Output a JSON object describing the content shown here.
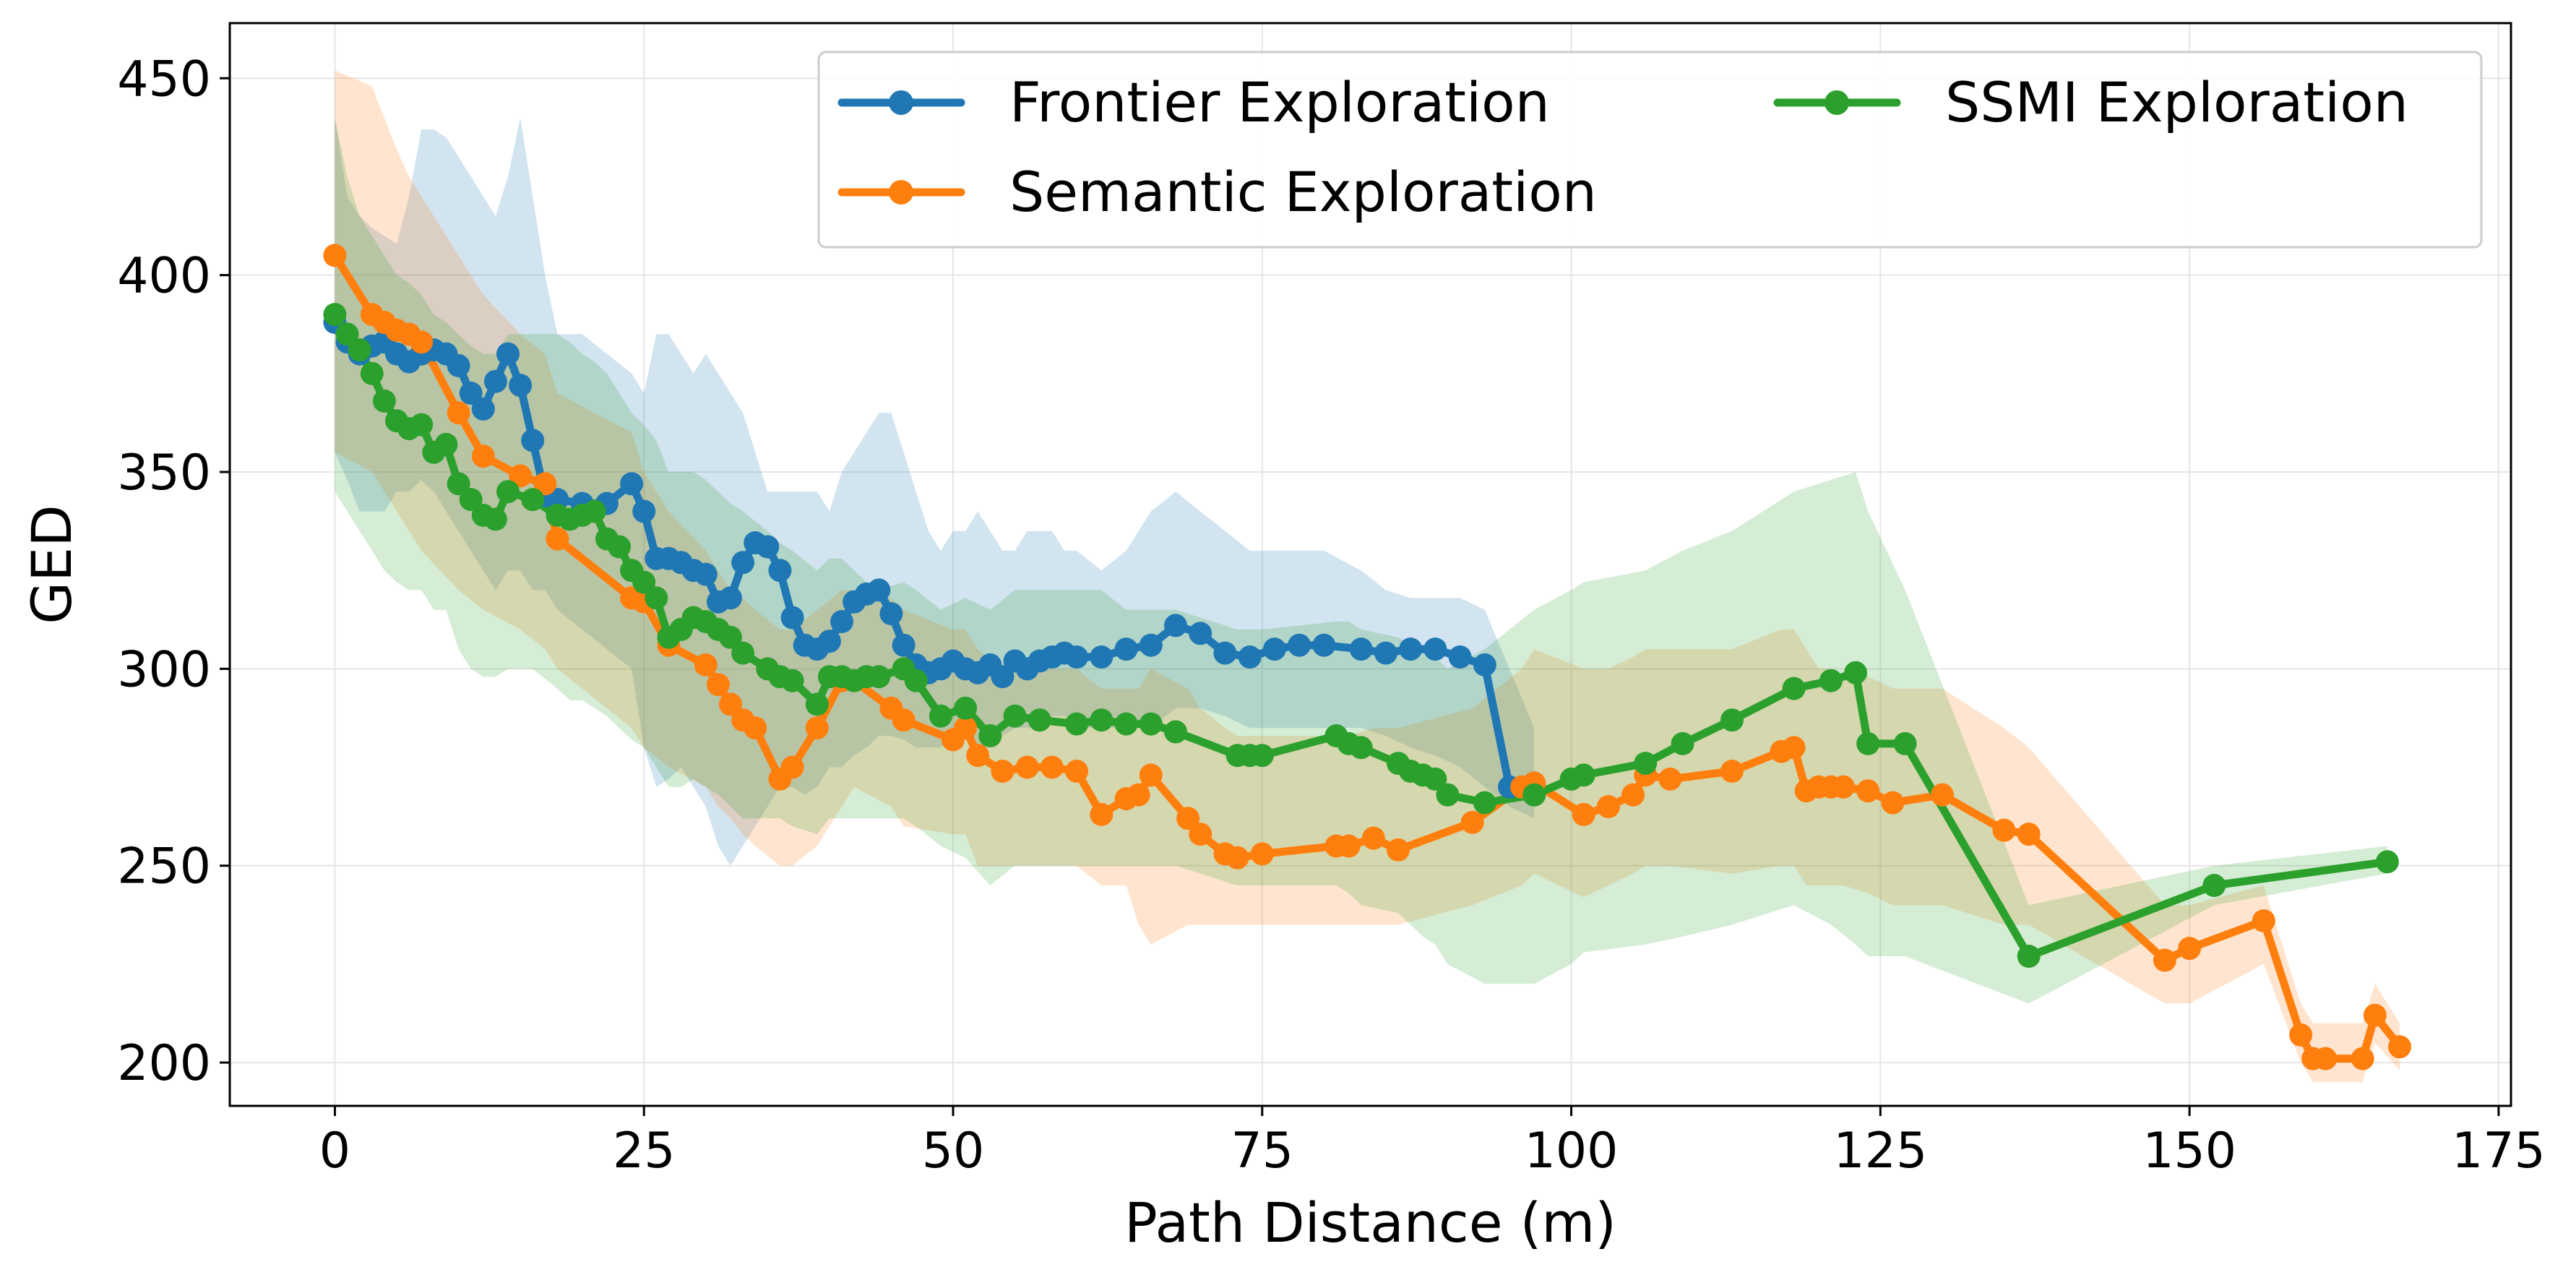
{
  "chart_data": {
    "type": "line",
    "title": "",
    "xlabel": "Path Distance (m)",
    "ylabel": "GED",
    "xlim": [
      -8.5,
      176
    ],
    "ylim": [
      189,
      464
    ],
    "xticks": [
      0,
      25,
      50,
      75,
      100,
      125,
      150,
      175
    ],
    "yticks": [
      200,
      250,
      300,
      350,
      400,
      450
    ],
    "grid": true,
    "legend": {
      "position": "top-right",
      "columns": 2
    },
    "series": [
      {
        "name": "Frontier Exploration",
        "color": "#1f77b4",
        "x": [
          0,
          1,
          2,
          3,
          4,
          5,
          6,
          7,
          8,
          9,
          10,
          11,
          12,
          13,
          14,
          15,
          16,
          17,
          18,
          20,
          22,
          24,
          25,
          26,
          27,
          28,
          29,
          30,
          31,
          32,
          33,
          34,
          35,
          36,
          37,
          38,
          39,
          40,
          41,
          42,
          43,
          44,
          45,
          46,
          47,
          48,
          49,
          50,
          51,
          52,
          53,
          54,
          55,
          56,
          57,
          58,
          59,
          60,
          62,
          64,
          66,
          68,
          70,
          72,
          74,
          76,
          78,
          80,
          83,
          85,
          87,
          89,
          91,
          93,
          95,
          97
        ],
        "values": [
          388,
          383,
          380,
          382,
          383,
          380,
          378,
          380,
          381,
          380,
          377,
          370,
          366,
          373,
          380,
          372,
          358,
          344,
          343,
          342,
          342,
          347,
          340,
          328,
          328,
          327,
          325,
          324,
          317,
          318,
          327,
          332,
          331,
          325,
          313,
          306,
          305,
          307,
          312,
          317,
          319,
          320,
          314,
          306,
          301,
          299,
          300,
          302,
          300,
          299,
          301,
          298,
          302,
          300,
          302,
          303,
          304,
          303,
          303,
          305,
          306,
          311,
          309,
          304,
          303,
          305,
          306,
          306,
          305,
          304,
          305,
          305,
          303,
          301,
          270,
          268
        ],
        "upper": [
          440,
          420,
          415,
          412,
          410,
          408,
          420,
          437,
          437,
          435,
          430,
          425,
          420,
          415,
          425,
          440,
          420,
          400,
          385,
          385,
          380,
          375,
          370,
          385,
          385,
          380,
          375,
          380,
          375,
          370,
          365,
          355,
          345,
          345,
          345,
          345,
          345,
          340,
          350,
          355,
          360,
          365,
          365,
          355,
          345,
          335,
          330,
          335,
          335,
          340,
          335,
          330,
          330,
          335,
          335,
          335,
          330,
          330,
          325,
          330,
          340,
          345,
          340,
          335,
          330,
          330,
          330,
          330,
          325,
          320,
          318,
          318,
          318,
          315,
          300,
          285
        ],
        "lower": [
          355,
          348,
          340,
          340,
          340,
          345,
          345,
          348,
          345,
          340,
          335,
          330,
          325,
          320,
          325,
          325,
          320,
          320,
          315,
          310,
          305,
          300,
          280,
          270,
          272,
          275,
          270,
          265,
          255,
          250,
          255,
          260,
          265,
          270,
          270,
          268,
          270,
          275,
          275,
          278,
          280,
          283,
          283,
          282,
          280,
          280,
          280,
          282,
          282,
          280,
          283,
          283,
          285,
          285,
          285,
          288,
          288,
          285,
          285,
          285,
          285,
          290,
          290,
          288,
          285,
          285,
          285,
          285,
          285,
          283,
          280,
          278,
          275,
          270,
          265,
          262
        ]
      },
      {
        "name": "Semantic Exploration",
        "color": "#ff7f0e",
        "x": [
          0,
          3,
          4,
          5,
          6,
          7,
          10,
          12,
          15,
          17,
          18,
          24,
          25,
          27,
          30,
          31,
          32,
          33,
          34,
          36,
          37,
          39,
          41,
          42,
          45,
          46,
          50,
          51,
          52,
          54,
          56,
          58,
          60,
          62,
          64,
          65,
          66,
          69,
          70,
          72,
          73,
          75,
          81,
          82,
          84,
          86,
          92,
          96,
          97,
          101,
          103,
          105,
          106,
          108,
          113,
          117,
          118,
          119,
          120,
          121,
          122,
          124,
          126,
          130,
          135,
          137,
          148,
          150,
          156,
          159,
          160,
          161,
          164,
          165,
          167
        ],
        "values": [
          405,
          390,
          388,
          386,
          385,
          383,
          365,
          354,
          349,
          347,
          333,
          318,
          317,
          306,
          301,
          296,
          291,
          287,
          285,
          272,
          275,
          285,
          297,
          297,
          290,
          287,
          282,
          285,
          278,
          274,
          275,
          275,
          274,
          263,
          267,
          268,
          273,
          262,
          258,
          253,
          252,
          253,
          255,
          255,
          257,
          254,
          261,
          270,
          271,
          263,
          265,
          268,
          273,
          272,
          274,
          279,
          280,
          269,
          270,
          270,
          270,
          269,
          266,
          268,
          259,
          258,
          226,
          229,
          236,
          207,
          201,
          201,
          201,
          212,
          204
        ],
        "upper": [
          452,
          448,
          440,
          432,
          425,
          420,
          405,
          395,
          385,
          380,
          370,
          360,
          350,
          340,
          330,
          325,
          320,
          318,
          315,
          310,
          310,
          315,
          320,
          320,
          318,
          315,
          310,
          310,
          305,
          300,
          300,
          300,
          300,
          295,
          295,
          295,
          300,
          295,
          290,
          285,
          283,
          283,
          283,
          283,
          285,
          285,
          290,
          300,
          305,
          300,
          300,
          303,
          305,
          305,
          305,
          310,
          310,
          305,
          300,
          300,
          298,
          298,
          295,
          295,
          285,
          280,
          240,
          240,
          245,
          215,
          210,
          210,
          210,
          220,
          210
        ],
        "lower": [
          355,
          350,
          345,
          340,
          335,
          330,
          320,
          315,
          310,
          305,
          300,
          285,
          280,
          275,
          270,
          265,
          262,
          258,
          255,
          250,
          250,
          255,
          265,
          270,
          265,
          260,
          258,
          258,
          250,
          250,
          250,
          250,
          250,
          245,
          245,
          235,
          230,
          235,
          235,
          235,
          235,
          235,
          235,
          235,
          235,
          235,
          240,
          245,
          248,
          242,
          245,
          248,
          250,
          250,
          248,
          250,
          250,
          245,
          245,
          245,
          245,
          243,
          240,
          240,
          235,
          235,
          215,
          215,
          225,
          200,
          195,
          195,
          195,
          205,
          198
        ]
      },
      {
        "name": "SSMI Exploration",
        "color": "#2ca02c",
        "x": [
          0,
          1,
          2,
          3,
          4,
          5,
          6,
          7,
          8,
          9,
          10,
          11,
          12,
          13,
          14,
          16,
          18,
          19,
          20,
          21,
          22,
          23,
          24,
          25,
          26,
          27,
          28,
          29,
          30,
          31,
          32,
          33,
          35,
          36,
          37,
          39,
          40,
          41,
          42,
          43,
          44,
          46,
          47,
          49,
          51,
          53,
          55,
          57,
          60,
          62,
          64,
          66,
          68,
          73,
          74,
          75,
          81,
          82,
          83,
          86,
          87,
          88,
          89,
          90,
          93,
          97,
          100,
          101,
          106,
          109,
          113,
          118,
          121,
          123,
          124,
          127,
          137,
          152,
          166
        ],
        "values": [
          390,
          385,
          381,
          375,
          368,
          363,
          361,
          362,
          355,
          357,
          347,
          343,
          339,
          338,
          345,
          343,
          339,
          338,
          339,
          340,
          333,
          331,
          325,
          322,
          318,
          308,
          310,
          313,
          312,
          310,
          308,
          304,
          300,
          298,
          297,
          291,
          298,
          298,
          297,
          298,
          298,
          300,
          297,
          288,
          290,
          283,
          288,
          287,
          286,
          287,
          286,
          286,
          284,
          278,
          278,
          278,
          283,
          281,
          280,
          276,
          274,
          273,
          272,
          268,
          266,
          268,
          272,
          273,
          276,
          281,
          287,
          295,
          297,
          299,
          281,
          281,
          227,
          245,
          251
        ],
        "upper": [
          440,
          425,
          415,
          410,
          405,
          400,
          398,
          395,
          390,
          388,
          385,
          382,
          380,
          380,
          385,
          385,
          385,
          383,
          380,
          378,
          375,
          370,
          365,
          362,
          358,
          350,
          350,
          350,
          348,
          345,
          342,
          340,
          335,
          332,
          330,
          325,
          328,
          328,
          325,
          322,
          320,
          322,
          320,
          315,
          318,
          315,
          320,
          320,
          320,
          320,
          315,
          315,
          315,
          310,
          310,
          310,
          312,
          312,
          310,
          308,
          306,
          305,
          303,
          300,
          305,
          315,
          320,
          322,
          325,
          330,
          335,
          345,
          348,
          350,
          340,
          320,
          240,
          250,
          255
        ],
        "lower": [
          345,
          340,
          335,
          330,
          325,
          322,
          320,
          320,
          315,
          315,
          305,
          300,
          298,
          298,
          300,
          300,
          295,
          292,
          292,
          290,
          288,
          285,
          282,
          280,
          275,
          270,
          270,
          272,
          270,
          268,
          265,
          262,
          262,
          262,
          260,
          258,
          262,
          262,
          262,
          262,
          262,
          262,
          260,
          255,
          252,
          245,
          250,
          250,
          250,
          250,
          250,
          250,
          250,
          245,
          245,
          245,
          245,
          243,
          240,
          238,
          235,
          232,
          230,
          225,
          220,
          220,
          225,
          228,
          230,
          232,
          235,
          240,
          235,
          230,
          227,
          227,
          215,
          240,
          248
        ]
      }
    ]
  }
}
